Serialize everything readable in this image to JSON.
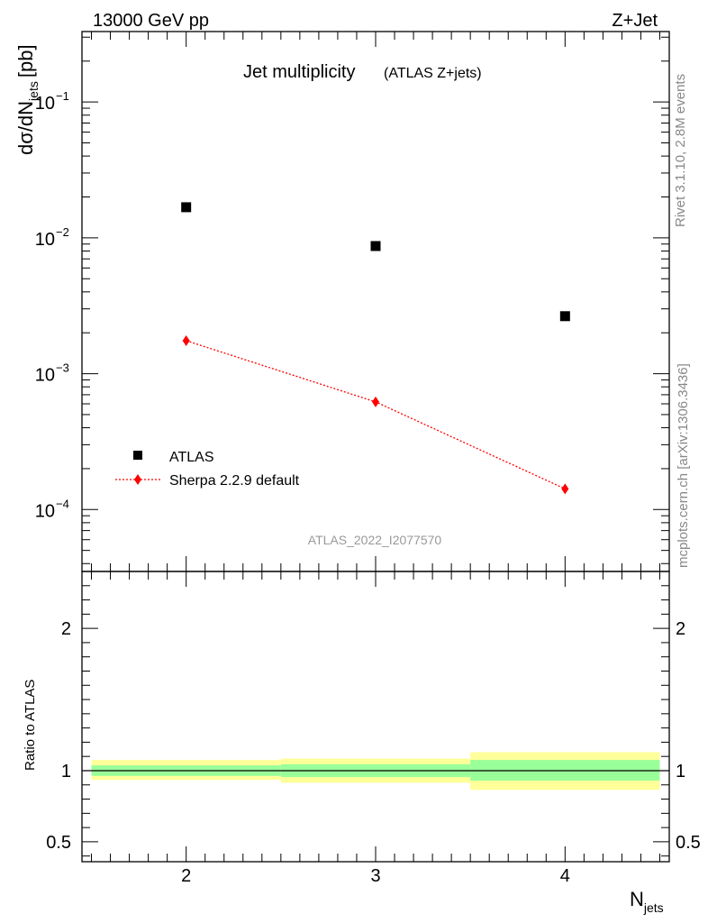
{
  "header": {
    "left": "13000 GeV pp",
    "right": "Z+Jet"
  },
  "side_labels": {
    "rivet": "Rivet 3.1.10,  2.8M events",
    "source": "mcplots.cern.ch [arXiv:1306.3436]"
  },
  "chart_data": [
    {
      "type": "scatter",
      "title": "Jet multiplicity",
      "subtitle": "(ATLAS Z+jets)",
      "ylabel": "dσ/dN",
      "ylabel_sub": "jets",
      "ylabel_unit": "[pb]",
      "yscale": "log",
      "ylim": [
        3.5e-05,
        0.33
      ],
      "xlim": [
        1.45,
        4.55
      ],
      "y_ticks": [
        {
          "value": 0.1,
          "base": "10",
          "exp": "−1"
        },
        {
          "value": 0.01,
          "base": "10",
          "exp": "−2"
        },
        {
          "value": 0.001,
          "base": "10",
          "exp": "−3"
        },
        {
          "value": 0.0001,
          "base": "10",
          "exp": "−4"
        }
      ],
      "watermark": "ATLAS_2022_I2077570",
      "legend_position": "bottom-left",
      "series": [
        {
          "name": "ATLAS",
          "marker": "square",
          "color": "#000000",
          "x": [
            2,
            3,
            4
          ],
          "y": [
            0.0168,
            0.0087,
            0.00265
          ]
        },
        {
          "name": "Sherpa 2.2.9 default",
          "marker": "diamond",
          "line": "dotted",
          "color": "#ff0000",
          "x": [
            2,
            3,
            4
          ],
          "y": [
            0.00175,
            0.00062,
            0.000142
          ]
        }
      ]
    },
    {
      "type": "line",
      "ylabel": "Ratio to ATLAS",
      "xlabel": "N",
      "xlabel_sub": "jets",
      "ylim": [
        0.36,
        2.4
      ],
      "xlim": [
        1.45,
        4.55
      ],
      "x_ticks": [
        2,
        3,
        4
      ],
      "y_ticks": [
        {
          "value": 2,
          "label": "2"
        },
        {
          "value": 1,
          "label": "1"
        },
        {
          "value": 0.5,
          "label": "0.5"
        }
      ],
      "reference_line": 1,
      "bands": [
        {
          "x_range": [
            1.5,
            2.5
          ],
          "stat": [
            0.963,
            1.037
          ],
          "total": [
            0.935,
            1.075
          ]
        },
        {
          "x_range": [
            2.5,
            3.5
          ],
          "stat": [
            0.955,
            1.045
          ],
          "total": [
            0.915,
            1.085
          ]
        },
        {
          "x_range": [
            3.5,
            4.5
          ],
          "stat": [
            0.93,
            1.075
          ],
          "total": [
            0.865,
            1.13
          ]
        }
      ],
      "colors": {
        "stat": "#99ff99",
        "total": "#ffff99"
      }
    }
  ]
}
